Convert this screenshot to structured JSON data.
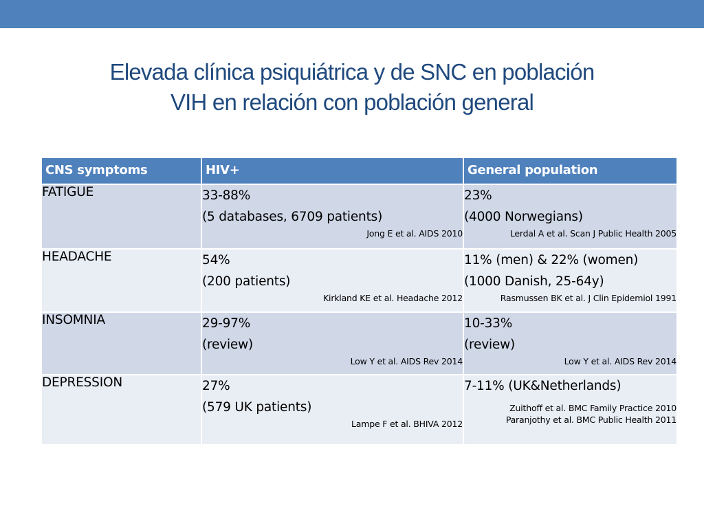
{
  "title": {
    "line1": "Elevada clínica psiquiátrica y de SNC en población",
    "line2": "VIH en relación con población general"
  },
  "colors": {
    "top_bar": "#4f81bd",
    "title": "#1f497d",
    "header_bg": "#4f81bd",
    "row_dark": "#d0d8e8",
    "row_light": "#e9edf4"
  },
  "table": {
    "headers": [
      "CNS symptoms",
      "HIV+",
      "General population"
    ],
    "rows": [
      {
        "symptom": "FATIGUE",
        "hiv": {
          "lines": [
            "33-88%",
            "(5 databases, 6709 patients)"
          ],
          "refs": [
            "Jong E et al. AIDS 2010"
          ]
        },
        "general": {
          "lines": [
            "23%",
            "(4000 Norwegians)"
          ],
          "refs": [
            "Lerdal A et al. Scan J Public Health 2005"
          ]
        }
      },
      {
        "symptom": "HEADACHE",
        "hiv": {
          "lines": [
            "54%",
            "(200 patients)"
          ],
          "refs": [
            "Kirkland KE et al. Headache 2012"
          ]
        },
        "general": {
          "lines": [
            "11% (men) & 22% (women)",
            "(1000 Danish, 25-64y)"
          ],
          "refs": [
            "Rasmussen BK et al. J Clin Epidemiol 1991"
          ]
        }
      },
      {
        "symptom": "INSOMNIA",
        "hiv": {
          "lines": [
            "29-97%",
            "(review)"
          ],
          "refs": [
            "Low Y et al. AIDS Rev 2014"
          ]
        },
        "general": {
          "lines": [
            "10-33%",
            "(review)"
          ],
          "refs": [
            "Low Y et al. AIDS Rev 2014"
          ]
        }
      },
      {
        "symptom": "DEPRESSION",
        "hiv": {
          "lines": [
            "27%",
            "(579 UK patients)"
          ],
          "refs": [
            "Lampe F et al. BHIVA 2012"
          ]
        },
        "general": {
          "lines": [
            "7-11% (UK&Netherlands)"
          ],
          "refs": [
            "Zuithoff et al. BMC Family Practice 2010",
            "Paranjothy et al. BMC Public Health 2011"
          ]
        }
      }
    ]
  }
}
